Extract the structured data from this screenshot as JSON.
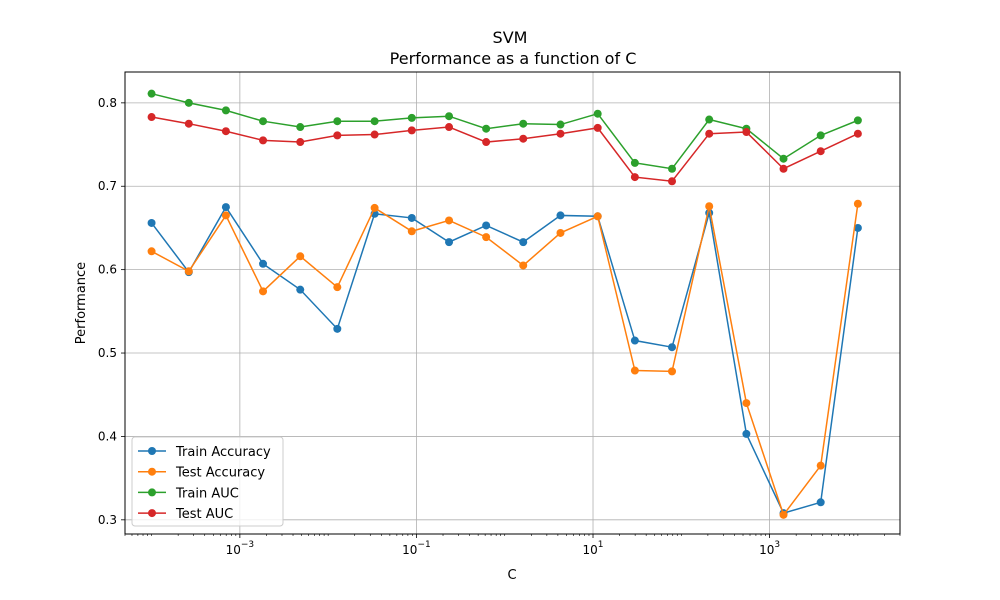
{
  "chart_data": {
    "type": "line",
    "title": "SVM",
    "subtitle": "Performance as a function of C",
    "xlabel": "C",
    "ylabel": "Performance",
    "xscale": "log",
    "xlim": [
      5e-05,
      30000
    ],
    "ylim": [
      0.283,
      0.837
    ],
    "grid": true,
    "legend_position": "lower-left",
    "x_ticks": [
      0.001,
      0.1,
      10,
      1000
    ],
    "x_tick_labels": [
      {
        "base": "10",
        "exp": "−3"
      },
      {
        "base": "10",
        "exp": "−1"
      },
      {
        "base": "10",
        "exp": "1"
      },
      {
        "base": "10",
        "exp": "3"
      }
    ],
    "y_ticks": [
      0.3,
      0.4,
      0.5,
      0.6,
      0.7,
      0.8
    ],
    "y_tick_labels": [
      "0.3",
      "0.4",
      "0.5",
      "0.6",
      "0.7",
      "0.8"
    ],
    "x": [
      0.0001,
      0.000264,
      0.000695,
      0.00183,
      0.00483,
      0.0127,
      0.0336,
      0.0886,
      0.234,
      0.616,
      1.62,
      4.28,
      11.3,
      29.8,
      78.5,
      207,
      546,
      1438,
      3793,
      10000
    ],
    "series": [
      {
        "name": "Train Accuracy",
        "color": "#1f77b4",
        "values": [
          0.656,
          0.597,
          0.675,
          0.607,
          0.576,
          0.529,
          0.667,
          0.662,
          0.633,
          0.653,
          0.633,
          0.665,
          0.664,
          0.515,
          0.507,
          0.668,
          0.403,
          0.308,
          0.321,
          0.65
        ]
      },
      {
        "name": "Test Accuracy",
        "color": "#ff7f0e",
        "values": [
          0.622,
          0.598,
          0.665,
          0.574,
          0.616,
          0.579,
          0.674,
          0.646,
          0.659,
          0.639,
          0.605,
          0.644,
          0.664,
          0.479,
          0.478,
          0.676,
          0.44,
          0.306,
          0.365,
          0.679
        ]
      },
      {
        "name": "Train AUC",
        "color": "#2ca02c",
        "values": [
          0.811,
          0.8,
          0.791,
          0.778,
          0.771,
          0.778,
          0.778,
          0.782,
          0.784,
          0.769,
          0.775,
          0.774,
          0.787,
          0.728,
          0.721,
          0.78,
          0.769,
          0.733,
          0.761,
          0.779
        ]
      },
      {
        "name": "Test AUC",
        "color": "#d62728",
        "values": [
          0.783,
          0.775,
          0.766,
          0.755,
          0.753,
          0.761,
          0.762,
          0.767,
          0.771,
          0.753,
          0.757,
          0.763,
          0.77,
          0.711,
          0.706,
          0.763,
          0.765,
          0.721,
          0.742,
          0.763
        ]
      }
    ]
  }
}
